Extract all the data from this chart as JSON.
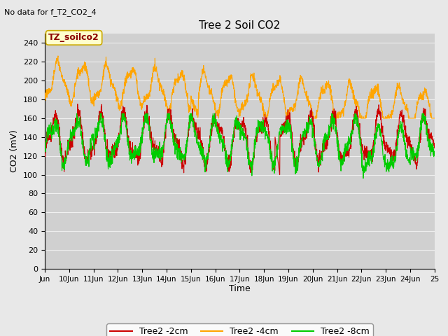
{
  "title": "Tree 2 Soil CO2",
  "note": "No data for f_T2_CO2_4",
  "xlabel": "Time",
  "ylabel": "CO2 (mV)",
  "annotation": "TZ_soilco2",
  "ylim": [
    0,
    250
  ],
  "yticks": [
    0,
    20,
    40,
    60,
    80,
    100,
    120,
    140,
    160,
    180,
    200,
    220,
    240
  ],
  "xlim_start": 9,
  "xlim_end": 25,
  "xtick_labels": [
    "Jun",
    "10Jun",
    "11Jun",
    "12Jun",
    "13Jun",
    "14Jun",
    "15Jun",
    "16Jun",
    "17Jun",
    "18Jun",
    "19Jun",
    "20Jun",
    "21Jun",
    "22Jun",
    "23Jun",
    "24Jun",
    "25"
  ],
  "xtick_positions": [
    9,
    10,
    11,
    12,
    13,
    14,
    15,
    16,
    17,
    18,
    19,
    20,
    21,
    22,
    23,
    24,
    25
  ],
  "bg_color": "#e8e8e8",
  "plot_bg_color": "#d0d0d0",
  "grid_color": "#f0f0f0",
  "line_red": "#cc0000",
  "line_orange": "#ffa500",
  "line_green": "#00cc00",
  "legend_labels": [
    "Tree2 -2cm",
    "Tree2 -4cm",
    "Tree2 -8cm"
  ],
  "legend_colors": [
    "#cc0000",
    "#ffa500",
    "#00cc00"
  ]
}
